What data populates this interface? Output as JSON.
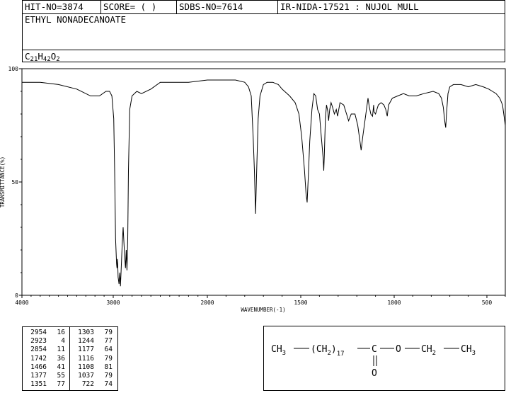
{
  "header": {
    "hit_no": "HIT-NO=3874",
    "score": "SCORE=  (   )",
    "sdbs_no": "SDBS-NO=7614",
    "ir_info": "IR-NIDA-17521 : NUJOL MULL",
    "compound_name": "ETHYL NONADECANOATE",
    "formula": {
      "c": "C",
      "c_n": "21",
      "h": "H",
      "h_n": "42",
      "o": "O",
      "o_n": "2"
    }
  },
  "chart_data": {
    "type": "line",
    "xlabel": "WAVENUMBER(-1)",
    "ylabel": "TRANSMITTANCE(%)",
    "xlim": [
      4000,
      400
    ],
    "ylim": [
      0,
      100
    ],
    "x_ticks": [
      4000,
      3000,
      2000,
      1500,
      1000,
      500
    ],
    "y_ticks": [
      0,
      50,
      100
    ],
    "x_tick_labels": [
      "4000",
      "3000",
      "2000",
      "1500",
      "1000",
      "500"
    ],
    "y_tick_labels": [
      "0",
      "50",
      "100"
    ],
    "grid": false,
    "series": [
      {
        "x": [
          4000,
          3800,
          3600,
          3400,
          3250,
          3150,
          3080,
          3040,
          3015,
          2995,
          2985,
          2975,
          2965,
          2960,
          2954,
          2948,
          2938,
          2930,
          2923,
          2915,
          2905,
          2895,
          2880,
          2870,
          2862,
          2854,
          2846,
          2838,
          2825,
          2800,
          2750,
          2700,
          2600,
          2500,
          2400,
          2200,
          2000,
          1900,
          1850,
          1800,
          1780,
          1765,
          1755,
          1748,
          1742,
          1736,
          1728,
          1718,
          1700,
          1680,
          1650,
          1620,
          1600,
          1560,
          1530,
          1510,
          1495,
          1480,
          1472,
          1466,
          1460,
          1452,
          1440,
          1430,
          1420,
          1410,
          1400,
          1390,
          1385,
          1380,
          1377,
          1374,
          1368,
          1362,
          1355,
          1351,
          1345,
          1338,
          1330,
          1320,
          1310,
          1303,
          1290,
          1270,
          1255,
          1244,
          1230,
          1210,
          1195,
          1185,
          1177,
          1168,
          1155,
          1145,
          1140,
          1133,
          1125,
          1116,
          1110,
          1108,
          1100,
          1085,
          1070,
          1055,
          1045,
          1037,
          1030,
          1010,
          980,
          950,
          920,
          880,
          840,
          790,
          760,
          745,
          735,
          730,
          726,
          722,
          718,
          710,
          700,
          680,
          640,
          600,
          560,
          520,
          490,
          470,
          450,
          430,
          415,
          400
        ],
        "y": [
          94,
          94,
          93,
          91,
          88,
          88,
          90,
          90,
          88,
          78,
          55,
          25,
          14,
          12,
          16,
          8,
          5,
          10,
          4,
          12,
          22,
          30,
          18,
          12,
          20,
          11,
          25,
          55,
          82,
          88,
          90,
          89,
          91,
          94,
          94,
          94,
          95,
          95,
          95,
          94,
          92,
          88,
          70,
          55,
          36,
          55,
          78,
          88,
          93,
          94,
          94,
          93,
          91,
          88,
          85,
          80,
          70,
          55,
          45,
          41,
          52,
          68,
          82,
          89,
          88,
          82,
          80,
          70,
          65,
          60,
          55,
          62,
          78,
          84,
          81,
          77,
          82,
          85,
          83,
          80,
          82,
          79,
          85,
          84,
          80,
          77,
          80,
          80,
          75,
          69,
          64,
          70,
          78,
          84,
          87,
          83,
          80,
          79,
          84,
          81,
          80,
          84,
          85,
          84,
          82,
          79,
          84,
          87,
          88,
          89,
          88,
          88,
          89,
          90,
          89,
          87,
          83,
          79,
          76,
          74,
          80,
          89,
          92,
          93,
          93,
          92,
          93,
          92,
          91,
          90,
          89,
          87,
          84,
          75
        ]
      }
    ]
  },
  "peak_table": {
    "left": [
      {
        "wn": "2954",
        "t": "16"
      },
      {
        "wn": "2923",
        "t": "4"
      },
      {
        "wn": "2854",
        "t": "11"
      },
      {
        "wn": "1742",
        "t": "36"
      },
      {
        "wn": "1466",
        "t": "41"
      },
      {
        "wn": "1377",
        "t": "55"
      },
      {
        "wn": "1351",
        "t": "77"
      }
    ],
    "right": [
      {
        "wn": "1303",
        "t": "79"
      },
      {
        "wn": "1244",
        "t": "77"
      },
      {
        "wn": "1177",
        "t": "64"
      },
      {
        "wn": "1116",
        "t": "79"
      },
      {
        "wn": "1108",
        "t": "81"
      },
      {
        "wn": "1037",
        "t": "79"
      },
      {
        "wn": "722",
        "t": "74"
      }
    ]
  },
  "structure": {
    "ch3_left": "CH",
    "ch3_left_sub": "3",
    "group_open": "(CH",
    "group_sub": "2",
    "group_close": ")",
    "repeat": "17",
    "carbonyl_c": "C",
    "ether_o": "O",
    "ch2": "CH",
    "ch2_sub": "2",
    "ch3_right": "CH",
    "ch3_right_sub": "3",
    "carbonyl_o": "O"
  }
}
